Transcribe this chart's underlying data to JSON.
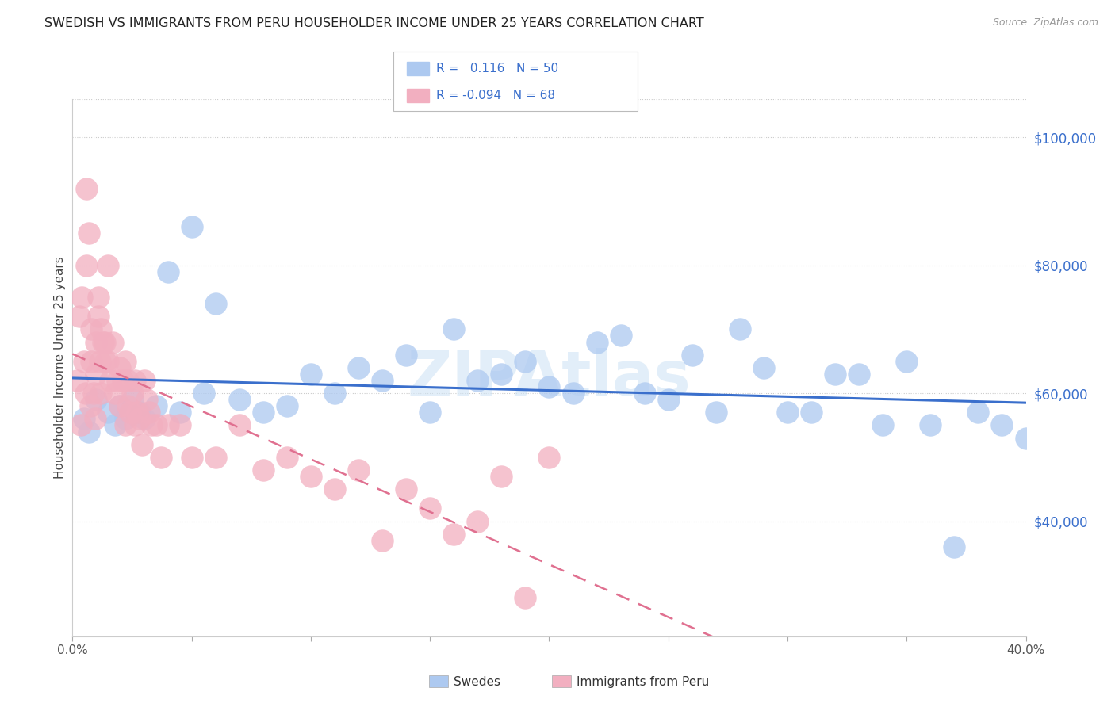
{
  "title": "SWEDISH VS IMMIGRANTS FROM PERU HOUSEHOLDER INCOME UNDER 25 YEARS CORRELATION CHART",
  "source": "Source: ZipAtlas.com",
  "ylabel": "Householder Income Under 25 years",
  "ylabel_right_ticks": [
    "$40,000",
    "$60,000",
    "$80,000",
    "$100,000"
  ],
  "ylabel_right_vals": [
    40000,
    60000,
    80000,
    100000
  ],
  "xmin": 0.0,
  "xmax": 40.0,
  "ymin": 22000,
  "ymax": 106000,
  "watermark": "ZIPAtlas",
  "swedes_color": "#adc9f0",
  "peru_color": "#f2afc0",
  "trendline_blue": "#3a6fcc",
  "trendline_pink": "#e07090",
  "swedes_x": [
    0.5,
    0.7,
    1.0,
    1.5,
    1.8,
    2.0,
    2.2,
    2.5,
    2.8,
    3.0,
    3.5,
    4.0,
    4.5,
    5.0,
    5.5,
    6.0,
    7.0,
    8.0,
    9.0,
    10.0,
    11.0,
    12.0,
    13.0,
    14.0,
    15.0,
    16.0,
    17.0,
    18.0,
    19.0,
    20.0,
    21.0,
    22.0,
    23.0,
    24.0,
    25.0,
    26.0,
    27.0,
    28.0,
    29.0,
    30.0,
    31.0,
    32.0,
    33.0,
    34.0,
    35.0,
    36.0,
    37.0,
    38.0,
    39.0,
    40.0
  ],
  "swedes_y": [
    56000,
    54000,
    59000,
    57000,
    55000,
    58000,
    56000,
    59000,
    57000,
    56000,
    58000,
    79000,
    57000,
    86000,
    60000,
    74000,
    59000,
    57000,
    58000,
    63000,
    60000,
    64000,
    62000,
    66000,
    57000,
    70000,
    62000,
    63000,
    65000,
    61000,
    60000,
    68000,
    69000,
    60000,
    59000,
    66000,
    57000,
    70000,
    64000,
    57000,
    57000,
    63000,
    63000,
    55000,
    65000,
    55000,
    36000,
    57000,
    55000,
    53000
  ],
  "peru_x": [
    0.2,
    0.3,
    0.4,
    0.5,
    0.6,
    0.6,
    0.7,
    0.8,
    0.8,
    0.9,
    1.0,
    1.0,
    1.1,
    1.1,
    1.2,
    1.2,
    1.3,
    1.4,
    1.5,
    1.5,
    1.6,
    1.7,
    1.8,
    1.9,
    2.0,
    2.0,
    2.1,
    2.2,
    2.2,
    2.3,
    2.3,
    2.4,
    2.5,
    2.6,
    2.6,
    2.7,
    2.8,
    2.9,
    3.0,
    3.1,
    3.2,
    3.3,
    3.5,
    3.7,
    4.0,
    4.5,
    5.0,
    6.0,
    7.0,
    8.0,
    9.0,
    10.0,
    11.0,
    12.0,
    13.0,
    14.0,
    15.0,
    16.0,
    17.0,
    18.0,
    19.0,
    20.0,
    0.35,
    0.55,
    0.75,
    0.95,
    1.15,
    1.35
  ],
  "peru_y": [
    62000,
    72000,
    75000,
    65000,
    80000,
    92000,
    85000,
    70000,
    65000,
    60000,
    68000,
    63000,
    72000,
    75000,
    70000,
    60000,
    68000,
    65000,
    80000,
    65000,
    62000,
    68000,
    60000,
    62000,
    64000,
    58000,
    62000,
    65000,
    55000,
    62000,
    58000,
    57000,
    60000,
    55000,
    62000,
    57000,
    56000,
    52000,
    62000,
    59000,
    57000,
    55000,
    55000,
    50000,
    55000,
    55000,
    50000,
    50000,
    55000,
    48000,
    50000,
    47000,
    45000,
    48000,
    37000,
    45000,
    42000,
    38000,
    40000,
    47000,
    28000,
    50000,
    55000,
    60000,
    58000,
    56000,
    65000,
    68000
  ]
}
